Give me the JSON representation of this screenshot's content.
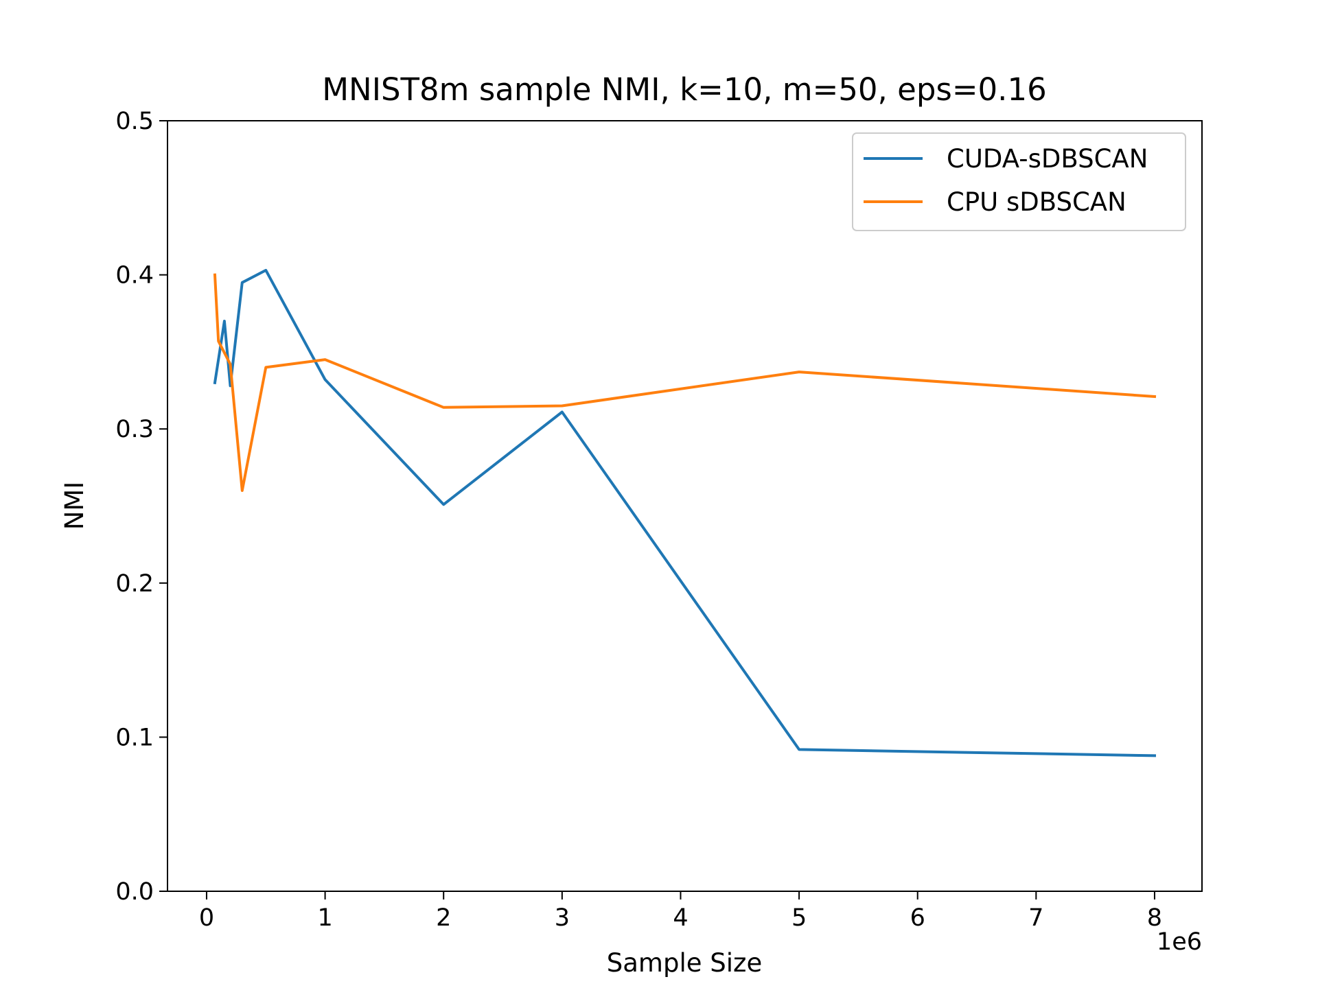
{
  "chart_data": {
    "type": "line",
    "title": "MNIST8m sample NMI, k=10, m=50, eps=0.16",
    "xlabel": "Sample Size",
    "ylabel": "NMI",
    "x_offset_text": "1e6",
    "xlim": [
      -0.33,
      8.4
    ],
    "ylim": [
      0.0,
      0.5
    ],
    "x_ticks": [
      0,
      1,
      2,
      3,
      4,
      5,
      6,
      7,
      8
    ],
    "x_tick_labels": [
      "0",
      "1",
      "2",
      "3",
      "4",
      "5",
      "6",
      "7",
      "8"
    ],
    "y_ticks": [
      0.0,
      0.1,
      0.2,
      0.3,
      0.4,
      0.5
    ],
    "y_tick_labels": [
      "0.0",
      "0.1",
      "0.2",
      "0.3",
      "0.4",
      "0.5"
    ],
    "grid": false,
    "legend_position": "top-right",
    "series": [
      {
        "name": "CUDA-sDBSCAN",
        "color": "#1f77b4",
        "x": [
          0.07,
          0.15,
          0.2,
          0.3,
          0.5,
          1,
          2,
          3,
          5,
          8
        ],
        "y": [
          0.33,
          0.37,
          0.328,
          0.395,
          0.403,
          0.332,
          0.251,
          0.311,
          0.092,
          0.088
        ]
      },
      {
        "name": "CPU sDBSCAN",
        "color": "#ff7f0e",
        "x": [
          0.07,
          0.1,
          0.2,
          0.3,
          0.5,
          1,
          2,
          3,
          5,
          8
        ],
        "y": [
          0.4,
          0.357,
          0.342,
          0.26,
          0.34,
          0.345,
          0.314,
          0.315,
          0.337,
          0.321
        ]
      }
    ]
  }
}
